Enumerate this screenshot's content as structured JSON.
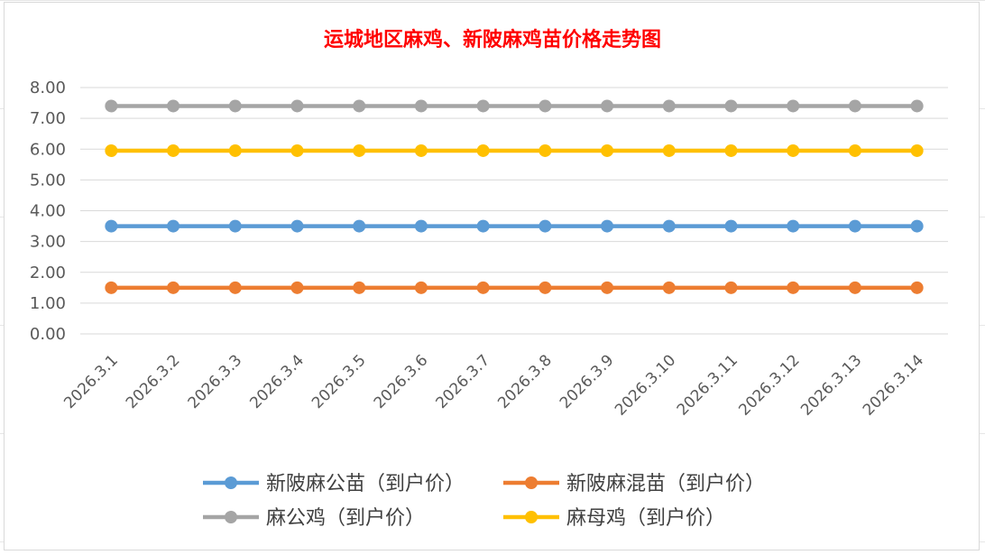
{
  "chart_data": {
    "type": "line",
    "title": "运城地区麻鸡、新陂麻鸡苗价格走势图",
    "xlabel": "",
    "ylabel": "",
    "categories": [
      "2026.3.1",
      "2026.3.2",
      "2026.3.3",
      "2026.3.4",
      "2026.3.5",
      "2026.3.6",
      "2026.3.7",
      "2026.3.8",
      "2026.3.9",
      "2026.3.10",
      "2026.3.11",
      "2026.3.12",
      "2026.3.13",
      "2026.3.14"
    ],
    "ylim": [
      0,
      8
    ],
    "yticks": [
      "0.00",
      "1.00",
      "2.00",
      "3.00",
      "4.00",
      "5.00",
      "6.00",
      "7.00",
      "8.00"
    ],
    "grid": true,
    "legend_position": "bottom",
    "title_color": "#ff0000",
    "series": [
      {
        "name": "新陂麻公苗（到户价）",
        "color": "#5b9bd5",
        "values": [
          3.5,
          3.5,
          3.5,
          3.5,
          3.5,
          3.5,
          3.5,
          3.5,
          3.5,
          3.5,
          3.5,
          3.5,
          3.5,
          3.5
        ]
      },
      {
        "name": "新陂麻混苗（到户价）",
        "color": "#ed7d31",
        "values": [
          1.5,
          1.5,
          1.5,
          1.5,
          1.5,
          1.5,
          1.5,
          1.5,
          1.5,
          1.5,
          1.5,
          1.5,
          1.5,
          1.5
        ]
      },
      {
        "name": "麻公鸡（到户价）",
        "color": "#a5a5a5",
        "values": [
          7.4,
          7.4,
          7.4,
          7.4,
          7.4,
          7.4,
          7.4,
          7.4,
          7.4,
          7.4,
          7.4,
          7.4,
          7.4,
          7.4
        ]
      },
      {
        "name": "麻母鸡（到户价）",
        "color": "#ffc000",
        "values": [
          5.95,
          5.95,
          5.95,
          5.95,
          5.95,
          5.95,
          5.95,
          5.95,
          5.95,
          5.95,
          5.95,
          5.95,
          5.95,
          5.95
        ]
      }
    ]
  }
}
